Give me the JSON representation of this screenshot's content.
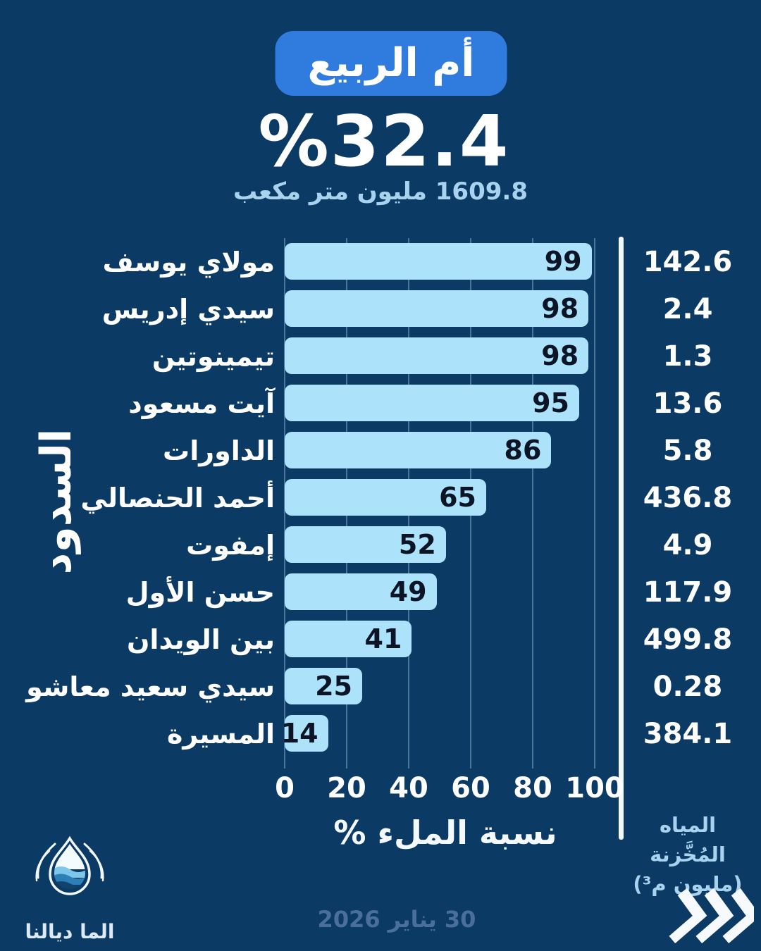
{
  "colors": {
    "background": "#0b3a64",
    "accent": "#2f7cde",
    "bar": "#ade2fb",
    "light_blue_text": "#a9d2ee",
    "bar_value_text": "#0b1526",
    "date_text": "#4b6f9d",
    "divider": "#f2f7fb"
  },
  "header": {
    "basin_badge": "أم الربيع",
    "fill_percent": "%32.4",
    "volume_label": "1609.8 مليون متر مكعب"
  },
  "chart_data": {
    "type": "bar",
    "orientation": "horizontal",
    "title": "أم الربيع",
    "xlabel": "نسبة الملء %",
    "ylabel": "السدود",
    "xlim": [
      0,
      100
    ],
    "xticks": [
      0,
      20,
      40,
      60,
      80,
      100
    ],
    "grid": true,
    "legend_position": "none",
    "categories": [
      "مولاي يوسف",
      "سيدي إدريس",
      "تيمينوتين",
      "آيت مسعود",
      "الداورات",
      "أحمد الحنصالي",
      "إمفوت",
      "حسن الأول",
      "بين الويدان",
      "سيدي سعيد معاشو",
      "المسيرة"
    ],
    "series": [
      {
        "name": "نسبة الملء %",
        "values": [
          99,
          98,
          98,
          95,
          86,
          65,
          52,
          49,
          41,
          25,
          14
        ]
      },
      {
        "name": "المياه المُخَّزنة (مليون م³)",
        "values": [
          "142.6",
          "2.4",
          "1.3",
          "13.6",
          "5.8",
          "436.8",
          "4.9",
          "117.9",
          "499.8",
          "0.28",
          "384.1"
        ]
      }
    ]
  },
  "right_column": {
    "header_line1": "المياه المُخَّزنة",
    "header_line2": "(مليون م³)"
  },
  "footer": {
    "date": "30 يناير 2026",
    "logo_text": "الما ديالنا",
    "chevrons_icon": "triple-chevron-right"
  }
}
